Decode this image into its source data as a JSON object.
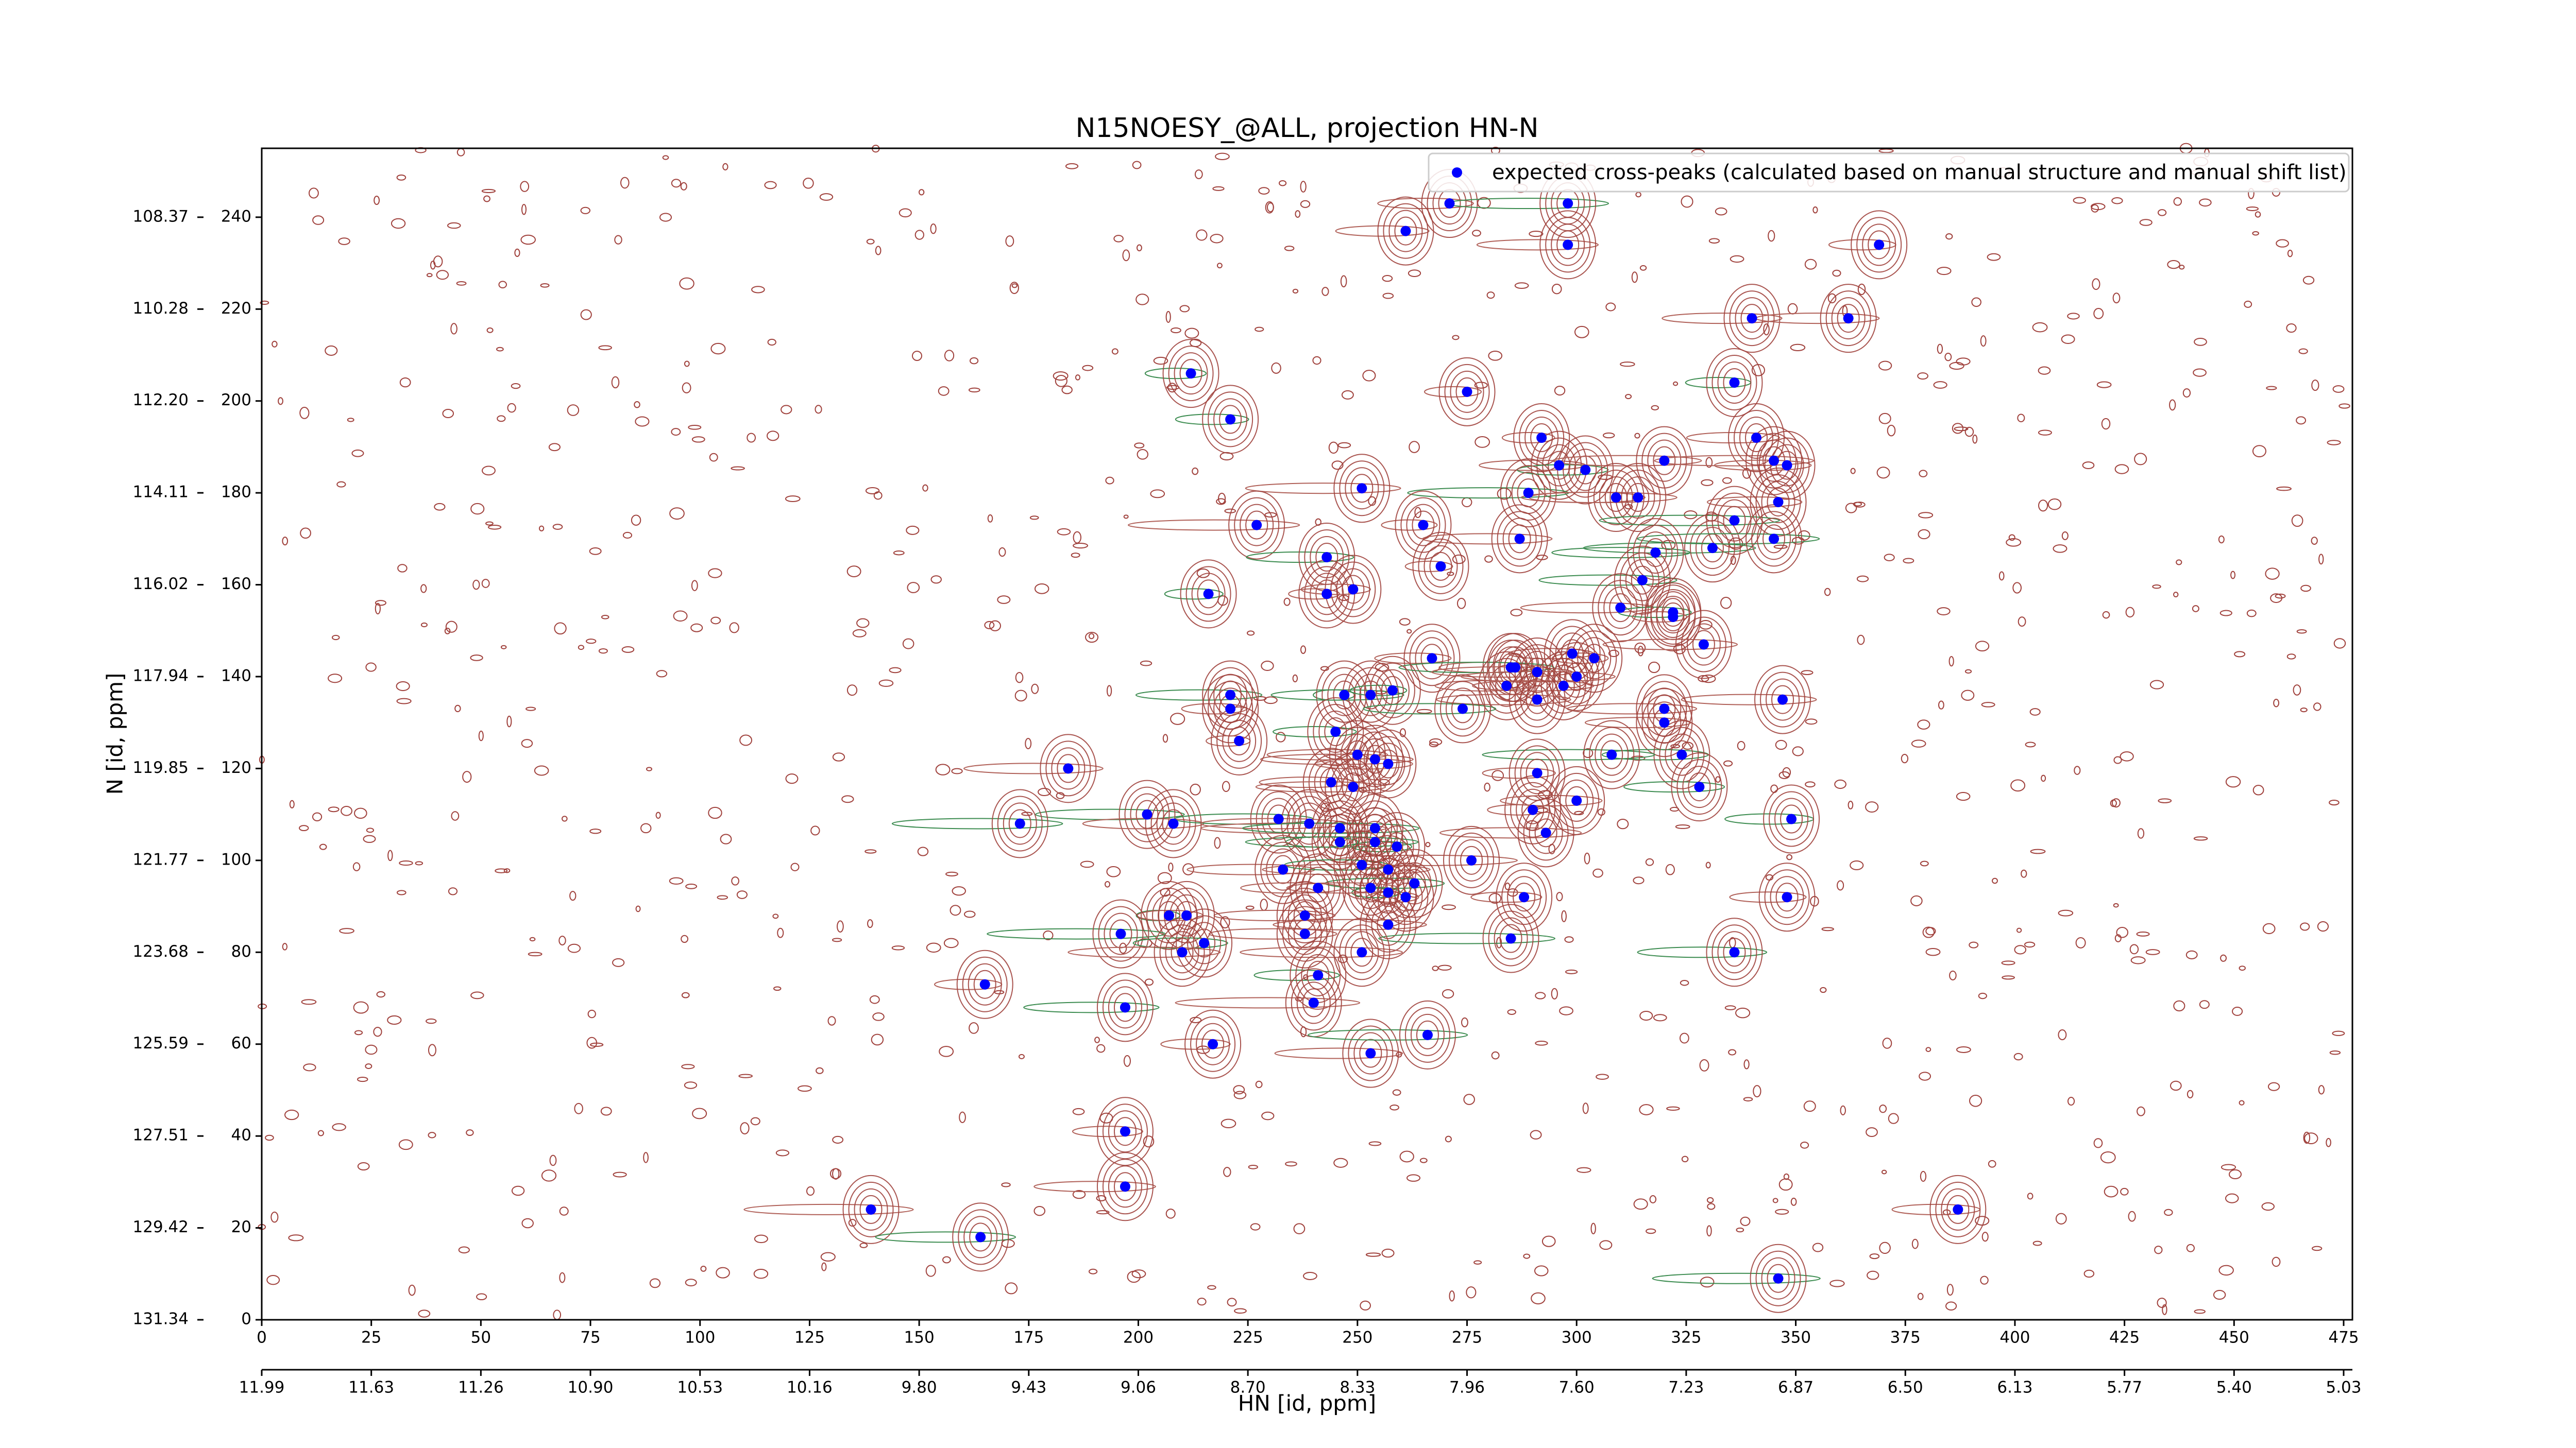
{
  "chart_data": {
    "type": "scatter",
    "title": "N15NOESY_@ALL, projection HN-N",
    "x_label": "HN [id, ppm]",
    "y_label": "N [id, ppm]",
    "xlim": [
      0,
      477
    ],
    "ylim": [
      0,
      255
    ],
    "xticks": [
      0,
      25,
      50,
      75,
      100,
      125,
      150,
      175,
      200,
      225,
      250,
      275,
      300,
      325,
      350,
      375,
      400,
      425,
      450,
      475
    ],
    "yticks": [
      0,
      20,
      40,
      60,
      80,
      100,
      120,
      140,
      160,
      180,
      200,
      220,
      240
    ],
    "x2ticks": [
      {
        "value": 0,
        "label": "11.99"
      },
      {
        "value": 25,
        "label": "11.63"
      },
      {
        "value": 50,
        "label": "11.26"
      },
      {
        "value": 75,
        "label": "10.90"
      },
      {
        "value": 100,
        "label": "10.53"
      },
      {
        "value": 125,
        "label": "10.16"
      },
      {
        "value": 150,
        "label": "9.80"
      },
      {
        "value": 175,
        "label": "9.43"
      },
      {
        "value": 200,
        "label": "9.06"
      },
      {
        "value": 225,
        "label": "8.70"
      },
      {
        "value": 250,
        "label": "8.33"
      },
      {
        "value": 275,
        "label": "7.96"
      },
      {
        "value": 300,
        "label": "7.60"
      },
      {
        "value": 325,
        "label": "7.23"
      },
      {
        "value": 350,
        "label": "6.87"
      },
      {
        "value": 375,
        "label": "6.50"
      },
      {
        "value": 400,
        "label": "6.13"
      },
      {
        "value": 425,
        "label": "5.77"
      },
      {
        "value": 450,
        "label": "5.40"
      },
      {
        "value": 475,
        "label": "5.03"
      }
    ],
    "y2ticks": [
      {
        "value": 0,
        "label": "131.34"
      },
      {
        "value": 20,
        "label": "129.42"
      },
      {
        "value": 40,
        "label": "127.51"
      },
      {
        "value": 60,
        "label": "125.59"
      },
      {
        "value": 80,
        "label": "123.68"
      },
      {
        "value": 100,
        "label": "121.77"
      },
      {
        "value": 120,
        "label": "119.85"
      },
      {
        "value": 140,
        "label": "117.94"
      },
      {
        "value": 160,
        "label": "116.02"
      },
      {
        "value": 180,
        "label": "114.11"
      },
      {
        "value": 200,
        "label": "112.20"
      },
      {
        "value": 220,
        "label": "110.28"
      },
      {
        "value": 240,
        "label": "108.37"
      }
    ],
    "legend": "upper right",
    "series": [
      {
        "name": "expected cross-peaks (calculated based on manual structure and manual shift list)",
        "color": "#0000ff",
        "x": [
          271,
          298,
          261,
          298,
          369,
          340,
          362,
          212,
          275,
          336,
          221,
          292,
          341,
          296,
          302,
          320,
          345,
          348,
          289,
          251,
          309,
          314,
          346,
          227,
          265,
          336,
          287,
          331,
          345,
          318,
          243,
          269,
          243,
          249,
          216,
          315,
          310,
          322,
          322,
          329,
          299,
          304,
          267,
          285,
          286,
          291,
          284,
          297,
          300,
          347,
          247,
          253,
          258,
          221,
          221,
          291,
          320,
          320,
          274,
          245,
          250,
          254,
          257,
          223,
          324,
          308,
          291,
          184,
          244,
          249,
          328,
          290,
          202,
          173,
          208,
          232,
          239,
          246,
          254,
          349,
          293,
          300,
          259,
          254,
          246,
          276,
          233,
          251,
          257,
          263,
          261,
          257,
          253,
          241,
          288,
          348,
          238,
          207,
          211,
          257,
          238,
          196,
          215,
          210,
          285,
          251,
          336,
          241,
          165,
          240,
          197,
          217,
          253,
          266,
          197,
          197,
          139,
          387,
          164,
          346
        ],
        "y": [
          243,
          243,
          237,
          234,
          234,
          218,
          218,
          206,
          202,
          204,
          196,
          192,
          192,
          186,
          185,
          187,
          187,
          186,
          180,
          181,
          179,
          179,
          178,
          173,
          173,
          174,
          170,
          168,
          170,
          167,
          166,
          164,
          158,
          159,
          158,
          161,
          155,
          154,
          153,
          147,
          145,
          144,
          144,
          142,
          142,
          141,
          138,
          138,
          140,
          135,
          136,
          136,
          137,
          136,
          133,
          135,
          133,
          130,
          133,
          128,
          123,
          122,
          121,
          126,
          123,
          123,
          119,
          120,
          117,
          116,
          116,
          111,
          110,
          108,
          108,
          109,
          108,
          107,
          107,
          109,
          106,
          113,
          103,
          104,
          104,
          100,
          98,
          99,
          98,
          95,
          92,
          93,
          94,
          94,
          92,
          92,
          88,
          88,
          88,
          86,
          84,
          84,
          82,
          80,
          83,
          80,
          80,
          75,
          73,
          69,
          68,
          60,
          58,
          62,
          41,
          29,
          24,
          24,
          18,
          9
        ]
      }
    ]
  }
}
